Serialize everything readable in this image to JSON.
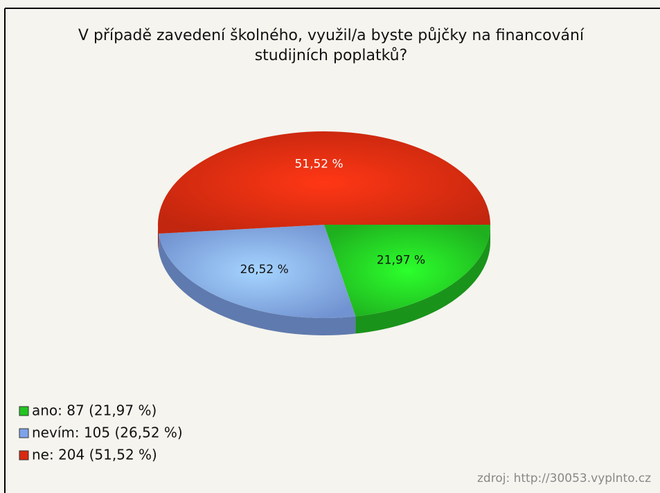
{
  "chart_data": {
    "type": "pie",
    "title": [
      "V případě zavedení školného, využil/a byste půjčky na financování",
      "studijních poplatků?"
    ],
    "labels": [
      "ano: 87 (21,97 %)",
      "nevím: 105 (26,52 %)",
      "ne: 204 (51,52 %)"
    ],
    "values": [
      21.97,
      26.52,
      51.52
    ],
    "value_labels": [
      "21,97 %",
      "26,52 %",
      "51,52 %"
    ],
    "colors": [
      "#22c422",
      "#7fa3e8",
      "#d82a10"
    ],
    "source": "zdroj: http://30053.vyplnto.cz"
  }
}
